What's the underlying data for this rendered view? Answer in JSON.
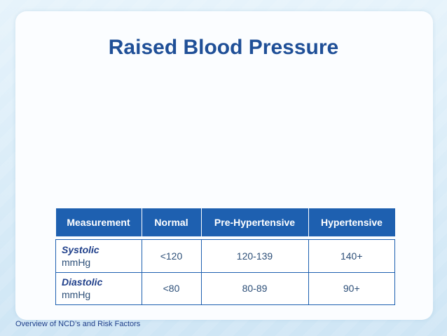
{
  "slide": {
    "title": "Raised Blood Pressure",
    "footer": "Overview of NCD’s and Risk Factors"
  },
  "table": {
    "headers": [
      "Measurement",
      "Normal",
      "Pre-Hypertensive",
      "Hypertensive"
    ],
    "rows": [
      {
        "name": "Systolic",
        "unit": "mmHg",
        "normal": "<120",
        "pre": "120-139",
        "hyper": "140+"
      },
      {
        "name": "Diastolic",
        "unit": "mmHg",
        "normal": "<80",
        "pre": "80-89",
        "hyper": "90+"
      }
    ]
  },
  "colors": {
    "header_bg": "#1e60b0",
    "title": "#1f4f97",
    "normal_value": "#c21f1f"
  }
}
